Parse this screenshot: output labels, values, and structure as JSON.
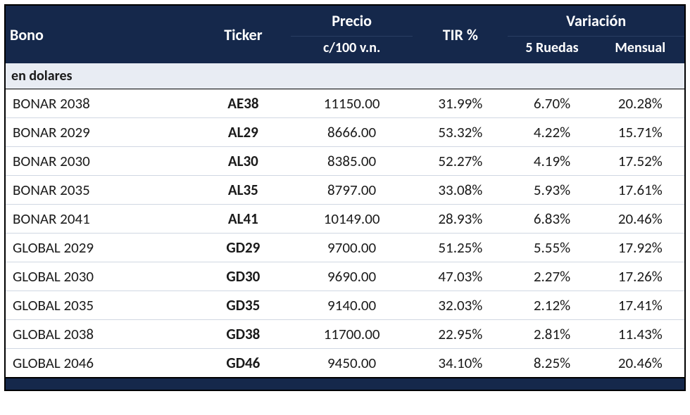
{
  "table": {
    "header": {
      "bono": "Bono",
      "ticker": "Ticker",
      "precio_line1": "Precio",
      "precio_line2": "c/100 v.n.",
      "tir": "TIR %",
      "variacion": "Variación",
      "var_5ruedas": "5 Ruedas",
      "var_mensual": "Mensual"
    },
    "section_label": "en dolares",
    "rows": [
      {
        "bono": "BONAR 2038",
        "ticker": "AE38",
        "precio": "11150.00",
        "tir": "31.99%",
        "r5": "6.70%",
        "men": "20.28%"
      },
      {
        "bono": "BONAR 2029",
        "ticker": "AL29",
        "precio": "8666.00",
        "tir": "53.32%",
        "r5": "4.22%",
        "men": "15.71%"
      },
      {
        "bono": "BONAR 2030",
        "ticker": "AL30",
        "precio": "8385.00",
        "tir": "52.27%",
        "r5": "4.19%",
        "men": "17.52%"
      },
      {
        "bono": "BONAR 2035",
        "ticker": "AL35",
        "precio": "8797.00",
        "tir": "33.08%",
        "r5": "5.93%",
        "men": "17.61%"
      },
      {
        "bono": "BONAR 2041",
        "ticker": "AL41",
        "precio": "10149.00",
        "tir": "28.93%",
        "r5": "6.83%",
        "men": "20.46%"
      },
      {
        "bono": "GLOBAL 2029",
        "ticker": "GD29",
        "precio": "9700.00",
        "tir": "51.25%",
        "r5": "5.55%",
        "men": "17.92%"
      },
      {
        "bono": "GLOBAL 2030",
        "ticker": "GD30",
        "precio": "9690.00",
        "tir": "47.03%",
        "r5": "2.27%",
        "men": "17.26%"
      },
      {
        "bono": "GLOBAL 2035",
        "ticker": "GD35",
        "precio": "9140.00",
        "tir": "32.03%",
        "r5": "2.12%",
        "men": "17.41%"
      },
      {
        "bono": "GLOBAL 2038",
        "ticker": "GD38",
        "precio": "11700.00",
        "tir": "22.95%",
        "r5": "2.81%",
        "men": "11.43%"
      },
      {
        "bono": "GLOBAL 2046",
        "ticker": "GD46",
        "precio": "9450.00",
        "tir": "34.10%",
        "r5": "8.25%",
        "men": "20.46%"
      }
    ],
    "styling": {
      "type": "table",
      "header_bg": "#15284b",
      "header_text_color": "#ffffff",
      "section_row_bg": "#e8ecf3",
      "row_border_color": "#d0d7e2",
      "outer_border_color": "#000000",
      "body_text_color": "#1a1a1a",
      "header_fontsize_pt": 16,
      "body_fontsize_pt": 15,
      "font_family": "Calibri",
      "col_widths_pct": [
        28,
        14,
        18,
        14,
        13,
        13
      ],
      "col_align": [
        "left",
        "center",
        "center",
        "center",
        "center",
        "center"
      ],
      "ticker_bold": true,
      "footer_bar_bg": "#15284b"
    }
  }
}
